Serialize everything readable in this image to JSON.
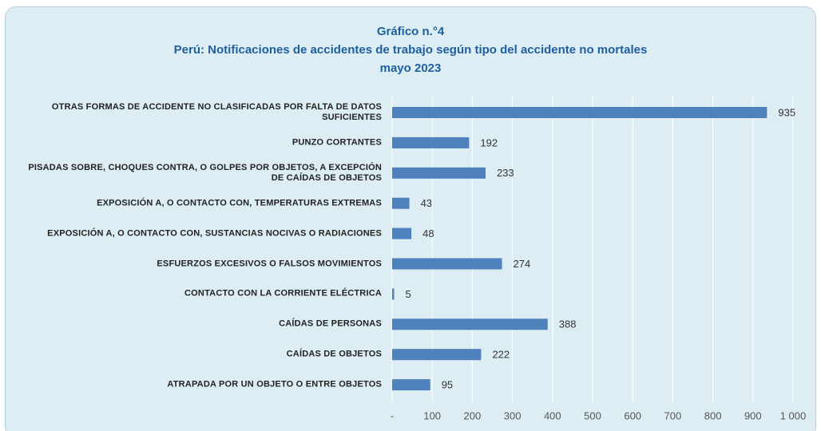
{
  "chart_data": {
    "type": "bar",
    "orientation": "horizontal",
    "title": [
      "Gráfico n.°4",
      "Perú: Notificaciones de accidentes de trabajo  según tipo del accidente no mortales",
      "mayo 2023"
    ],
    "categories": [
      "OTRAS FORMAS DE ACCIDENTE NO CLASIFICADAS POR FALTA DE DATOS SUFICIENTES",
      "PUNZO CORTANTES",
      "PISADAS SOBRE, CHOQUES CONTRA, O GOLPES POR OBJETOS, A EXCEPCIÓN DE CAÍDAS DE OBJETOS",
      "EXPOSICIÓN A, O CONTACTO CON, TEMPERATURAS EXTREMAS",
      "EXPOSICIÓN A, O CONTACTO CON, SUSTANCIAS NOCIVAS O RADIACIONES",
      "ESFUERZOS EXCESIVOS O FALSOS MOVIMIENTOS",
      "CONTACTO CON LA CORRIENTE ELÉCTRICA",
      "CAÍDAS DE PERSONAS",
      "CAÍDAS DE OBJETOS",
      "ATRAPADA POR UN OBJETO O ENTRE OBJETOS"
    ],
    "values": [
      935,
      192,
      233,
      43,
      48,
      274,
      5,
      388,
      222,
      95
    ],
    "color": "#4f81bd",
    "xlim": [
      0,
      1000
    ],
    "xticks": [
      {
        "value": 0,
        "label": "-"
      },
      100,
      200,
      300,
      400,
      500,
      600,
      700,
      800,
      900,
      {
        "value": 1000,
        "label": "1 000"
      }
    ],
    "grid": true
  }
}
